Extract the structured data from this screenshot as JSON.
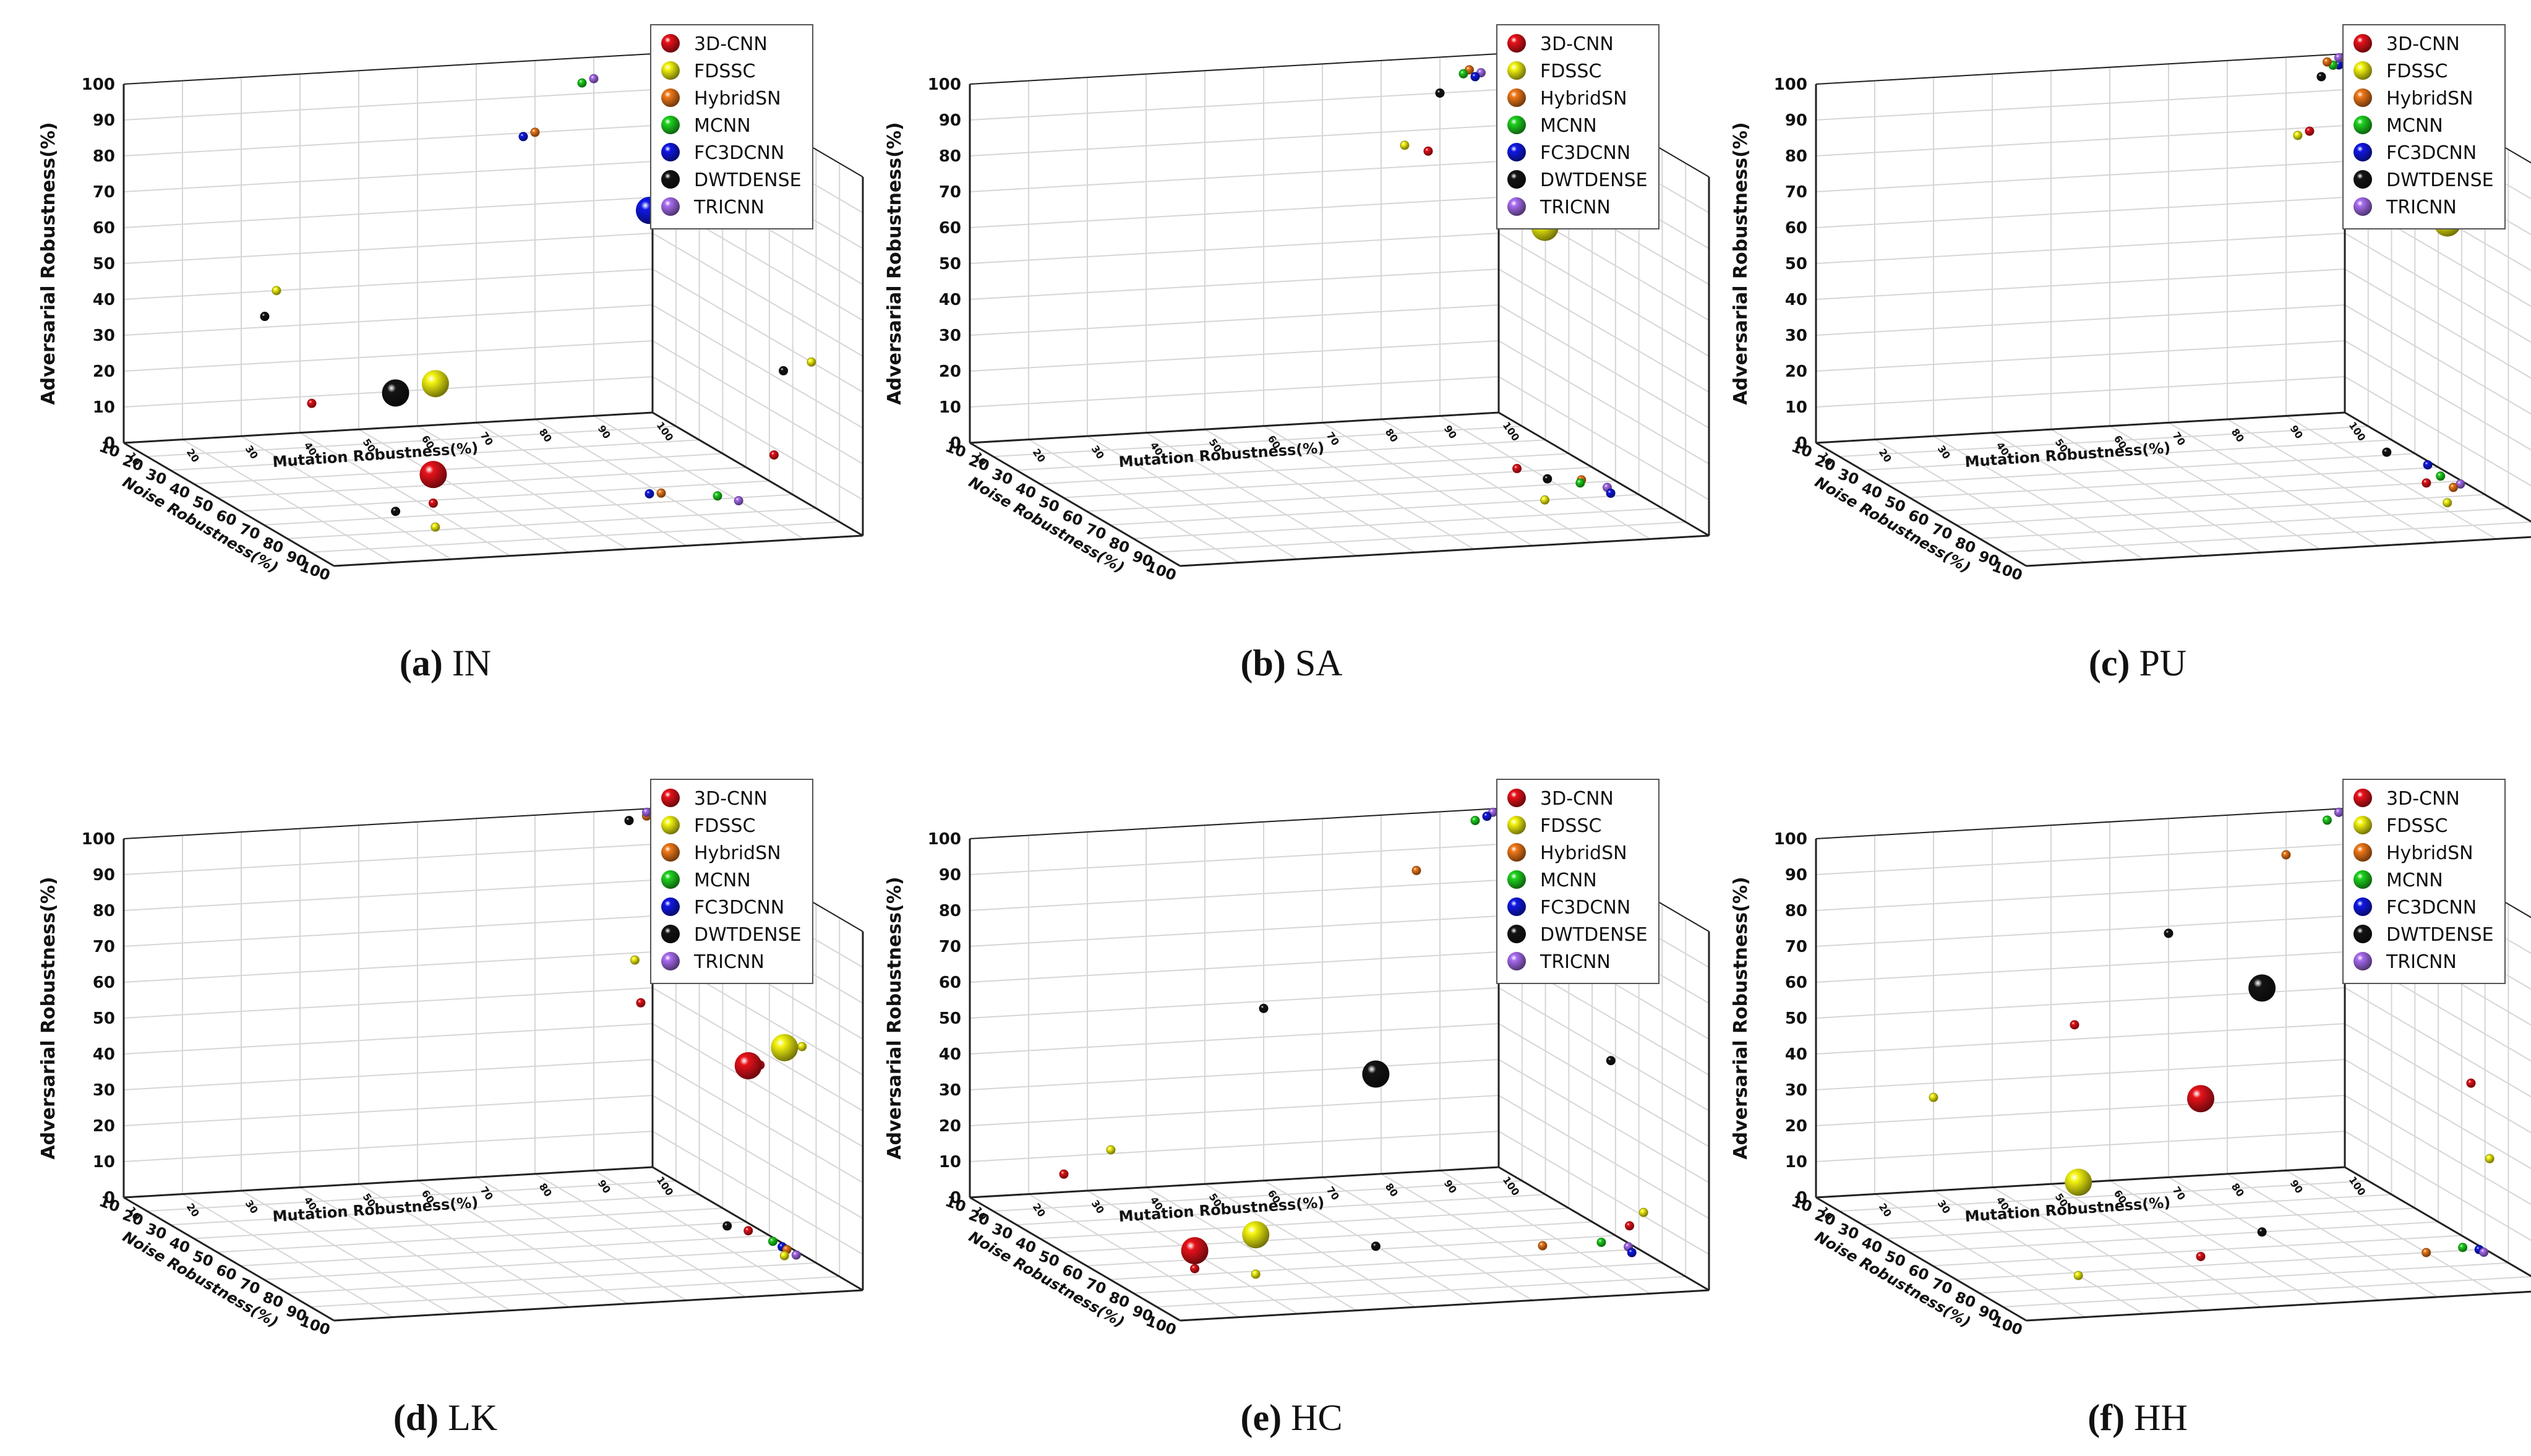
{
  "legend": [
    "3D-CNN",
    "FDSSC",
    "HybridSN",
    "MCNN",
    "FC3DCNN",
    "DWTDENSE",
    "TRICNN"
  ],
  "colors": {
    "3D-CNN": "#e8121a",
    "FDSSC": "#f4f410",
    "HybridSN": "#f07818",
    "MCNN": "#1ed21e",
    "FC3DCNN": "#1018e6",
    "DWTDENSE": "#141414",
    "TRICNN": "#a86cf0",
    "axis": "#222222",
    "grid": "#d6d6d6"
  },
  "axes": {
    "x_label": "Mutation Robustness(%)",
    "y_label": "Noise Robustness(%)",
    "z_label": "Adversarial Robustness(%)",
    "x_ticks": [
      "10",
      "20",
      "30",
      "40",
      "50",
      "60",
      "70",
      "80",
      "90",
      "100"
    ],
    "y_ticks": [
      "10",
      "20",
      "30",
      "40",
      "50",
      "60",
      "70",
      "80",
      "90",
      "100"
    ],
    "z_ticks": [
      "0",
      "10",
      "20",
      "30",
      "40",
      "50",
      "60",
      "70",
      "80",
      "90",
      "100"
    ]
  },
  "chart_data": [
    {
      "type": "scatter",
      "dataset": "IN",
      "caption_letter": "(a)",
      "caption_name": "IN",
      "xlabel": "Mutation Robustness(%)",
      "ylabel": "Noise Robustness(%)",
      "zlabel": "Adversarial Robustness(%)",
      "xlim": [
        10,
        100
      ],
      "ylim": [
        10,
        100
      ],
      "zlim": [
        0,
        100
      ],
      "series": [
        {
          "name": "3D-CNN",
          "x": 42,
          "y": 62,
          "z": 8
        },
        {
          "name": "FDSSC",
          "x": 36,
          "y": 78,
          "z": 40
        },
        {
          "name": "HybridSN",
          "x": 80,
          "y": 64,
          "z": 80
        },
        {
          "name": "MCNN",
          "x": 88,
          "y": 68,
          "z": 93
        },
        {
          "name": "FC3DCNN",
          "x": 78,
          "y": 64,
          "z": 79
        },
        {
          "name": "DWTDENSE",
          "x": 34,
          "y": 66,
          "z": 33
        },
        {
          "name": "TRICNN",
          "x": 90,
          "y": 72,
          "z": 94
        }
      ]
    },
    {
      "type": "scatter",
      "dataset": "SA",
      "caption_letter": "(b)",
      "caption_name": "SA",
      "xlabel": "Mutation Robustness(%)",
      "ylabel": "Noise Robustness(%)",
      "zlabel": "Adversarial Robustness(%)",
      "xlim": [
        10,
        100
      ],
      "ylim": [
        10,
        100
      ],
      "zlim": [
        0,
        100
      ],
      "series": [
        {
          "name": "3D-CNN",
          "x": 88,
          "y": 48,
          "z": 74
        },
        {
          "name": "FDSSC",
          "x": 84,
          "y": 70,
          "z": 76
        },
        {
          "name": "HybridSN",
          "x": 95,
          "y": 58,
          "z": 96
        },
        {
          "name": "MCNN",
          "x": 94,
          "y": 60,
          "z": 95
        },
        {
          "name": "FC3DCNN",
          "x": 96,
          "y": 68,
          "z": 94
        },
        {
          "name": "DWTDENSE",
          "x": 90,
          "y": 56,
          "z": 90
        },
        {
          "name": "TRICNN",
          "x": 97,
          "y": 64,
          "z": 95
        }
      ]
    },
    {
      "type": "scatter",
      "dataset": "PU",
      "caption_letter": "(c)",
      "caption_name": "PU",
      "xlabel": "Mutation Robustness(%)",
      "ylabel": "Noise Robustness(%)",
      "zlabel": "Adversarial Robustness(%)",
      "xlim": [
        10,
        100
      ],
      "ylim": [
        10,
        100
      ],
      "zlim": [
        0,
        100
      ],
      "series": [
        {
          "name": "3D-CNN",
          "x": 94,
          "y": 60,
          "z": 79
        },
        {
          "name": "FDSSC",
          "x": 92,
          "y": 74,
          "z": 78
        },
        {
          "name": "HybridSN",
          "x": 97,
          "y": 64,
          "z": 98
        },
        {
          "name": "MCNN",
          "x": 98,
          "y": 56,
          "z": 97
        },
        {
          "name": "FC3DCNN",
          "x": 99,
          "y": 48,
          "z": 97
        },
        {
          "name": "DWTDENSE",
          "x": 96,
          "y": 38,
          "z": 94
        },
        {
          "name": "TRICNN",
          "x": 99,
          "y": 62,
          "z": 99
        }
      ]
    },
    {
      "type": "scatter",
      "dataset": "LK",
      "caption_letter": "(d)",
      "caption_name": "LK",
      "xlabel": "Mutation Robustness(%)",
      "ylabel": "Noise Robustness(%)",
      "zlabel": "Adversarial Robustness(%)",
      "xlim": [
        10,
        100
      ],
      "ylim": [
        10,
        100
      ],
      "zlim": [
        0,
        100
      ],
      "series": [
        {
          "name": "3D-CNN",
          "x": 98,
          "y": 56,
          "z": 46
        },
        {
          "name": "FDSSC",
          "x": 97,
          "y": 74,
          "z": 58
        },
        {
          "name": "HybridSN",
          "x": 99,
          "y": 70,
          "z": 98
        },
        {
          "name": "MCNN",
          "x": 99,
          "y": 64,
          "z": 98
        },
        {
          "name": "FC3DCNN",
          "x": 99,
          "y": 68,
          "z": 98
        },
        {
          "name": "DWTDENSE",
          "x": 96,
          "y": 52,
          "z": 97
        },
        {
          "name": "TRICNN",
          "x": 99,
          "y": 74,
          "z": 99
        }
      ]
    },
    {
      "type": "scatter",
      "dataset": "HC",
      "caption_letter": "(e)",
      "caption_name": "HC",
      "xlabel": "Mutation Robustness(%)",
      "ylabel": "Noise Robustness(%)",
      "zlabel": "Adversarial Robustness(%)",
      "xlim": [
        10,
        100
      ],
      "ylim": [
        10,
        100
      ],
      "zlim": [
        0,
        100
      ],
      "series": [
        {
          "name": "3D-CNN",
          "x": 26,
          "y": 66,
          "z": 5
        },
        {
          "name": "FDSSC",
          "x": 34,
          "y": 72,
          "z": 11
        },
        {
          "name": "HybridSN",
          "x": 86,
          "y": 64,
          "z": 84
        },
        {
          "name": "MCNN",
          "x": 96,
          "y": 64,
          "z": 97
        },
        {
          "name": "FC3DCNN",
          "x": 98,
          "y": 72,
          "z": 98
        },
        {
          "name": "DWTDENSE",
          "x": 60,
          "y": 58,
          "z": 48
        },
        {
          "name": "TRICNN",
          "x": 99,
          "y": 68,
          "z": 99
        }
      ]
    },
    {
      "type": "scatter",
      "dataset": "HH",
      "caption_letter": "(f)",
      "caption_name": "HH",
      "xlabel": "Mutation Robustness(%)",
      "ylabel": "Noise Robustness(%)",
      "zlabel": "Adversarial Robustness(%)",
      "xlim": [
        10,
        100
      ],
      "ylim": [
        10,
        100
      ],
      "zlim": [
        0,
        100
      ],
      "series": [
        {
          "name": "3D-CNN",
          "x": 54,
          "y": 64,
          "z": 44
        },
        {
          "name": "FDSSC",
          "x": 30,
          "y": 72,
          "z": 26
        },
        {
          "name": "HybridSN",
          "x": 90,
          "y": 70,
          "z": 88
        },
        {
          "name": "MCNN",
          "x": 97,
          "y": 68,
          "z": 97
        },
        {
          "name": "FC3DCNN",
          "x": 99,
          "y": 70,
          "z": 99
        },
        {
          "name": "DWTDENSE",
          "x": 70,
          "y": 50,
          "z": 68
        },
        {
          "name": "TRICNN",
          "x": 99,
          "y": 72,
          "z": 99
        }
      ]
    }
  ]
}
